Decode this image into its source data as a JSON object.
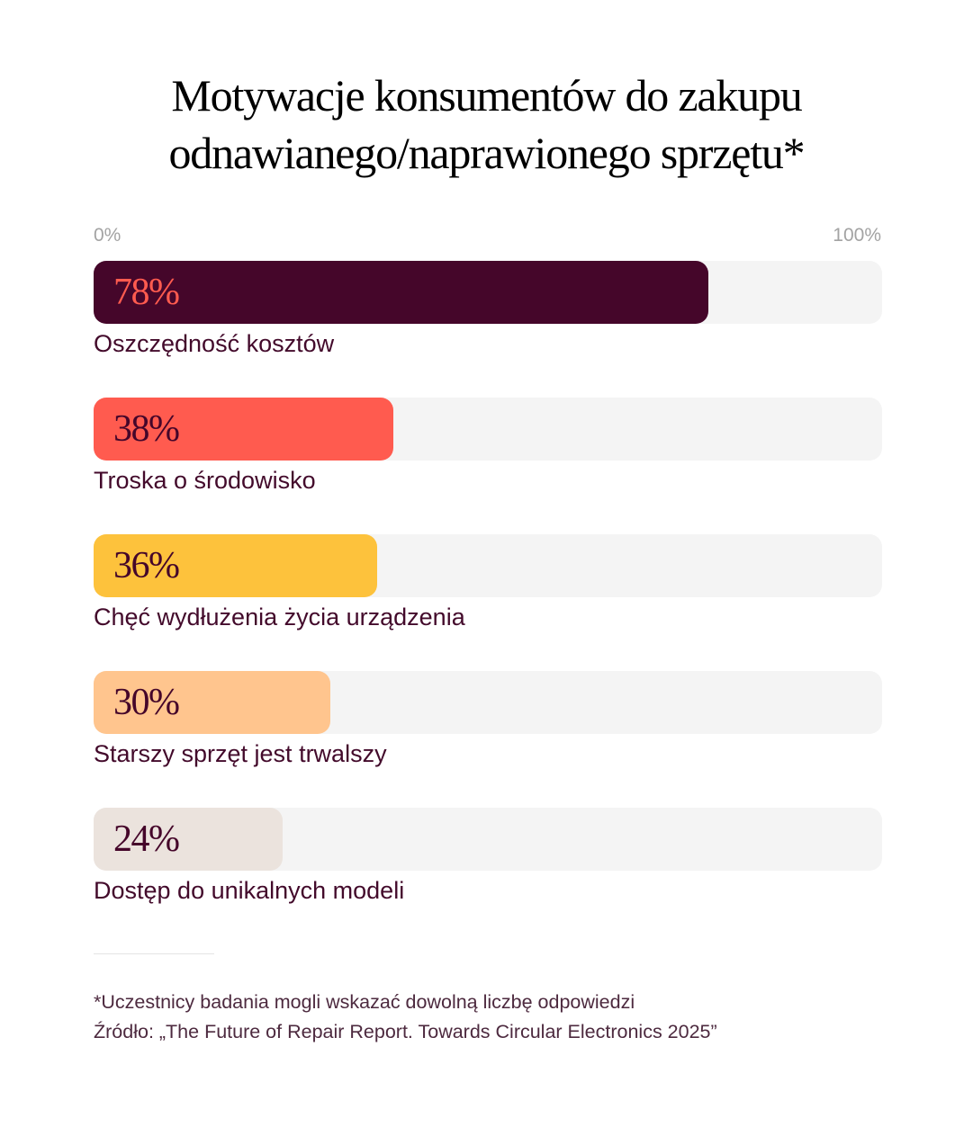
{
  "chart_data": {
    "type": "bar",
    "orientation": "horizontal",
    "title": [
      "Motywacje konsumentów do zakupu",
      "odnawianego/naprawionego sprzętu*"
    ],
    "axis": {
      "min_label": "0%",
      "max_label": "100%",
      "xlim": [
        0,
        100
      ]
    },
    "categories": [
      "Oszczędność kosztów",
      "Troska o środowisko",
      "Chęć wydłużenia życia urządzenia",
      "Starszy sprzęt jest trwalszy",
      "Dostęp do unikalnych modeli"
    ],
    "values": [
      78,
      38,
      36,
      30,
      24
    ],
    "value_labels": [
      "78%",
      "38%",
      "36%",
      "30%",
      "24%"
    ],
    "colors": [
      "#45062a",
      "#ff5b4f",
      "#fdc23c",
      "#ffc58e",
      "#ebe3dd"
    ],
    "label_colors": [
      "#ff5b4f",
      "#45062a",
      "#45062a",
      "#45062a",
      "#45062a"
    ],
    "track_color": "#f4f4f4",
    "grid": false,
    "legend": "none"
  },
  "footnote": {
    "note": "*Uczestnicy badania mogli wskazać dowolną liczbę odpowiedzi",
    "source": "Źródło: „The Future of Repair Report. Towards Circular Electronics 2025”"
  }
}
